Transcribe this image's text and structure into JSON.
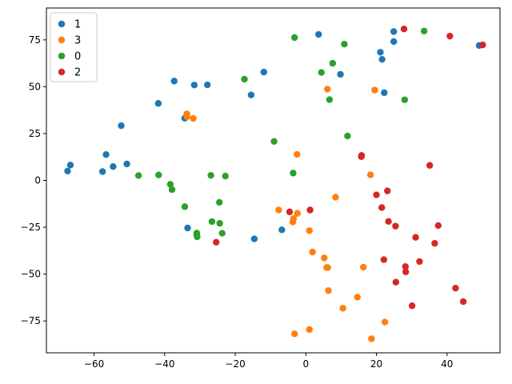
{
  "chart_data": {
    "type": "scatter",
    "title": "",
    "xlabel": "",
    "ylabel": "",
    "xlim": [
      -73.5,
      55
    ],
    "ylim": [
      -92,
      92
    ],
    "xticks": [
      -60,
      -40,
      -20,
      0,
      20,
      40
    ],
    "yticks": [
      -75,
      -50,
      -25,
      0,
      25,
      50,
      75
    ],
    "tick_labels_x": [
      "−60",
      "−40",
      "−20",
      "0",
      "20",
      "40"
    ],
    "tick_labels_y": [
      "−75",
      "−50",
      "−25",
      "0",
      "25",
      "50",
      "75"
    ],
    "grid": false,
    "legend_position": "top-left",
    "series": [
      {
        "name": "1",
        "color": "#1f77b4",
        "points": [
          [
            -67.5,
            5
          ],
          [
            -66.7,
            8.2
          ],
          [
            -57.6,
            4.7
          ],
          [
            -56.6,
            13.8
          ],
          [
            -54.6,
            7.4
          ],
          [
            -52.3,
            29.2
          ],
          [
            -50.7,
            8.8
          ],
          [
            -41.8,
            41.1
          ],
          [
            -37.3,
            53
          ],
          [
            -34.3,
            33.2
          ],
          [
            -33.5,
            -25.4
          ],
          [
            -31.6,
            50.9
          ],
          [
            -27.9,
            51
          ],
          [
            -14.6,
            -31.2
          ],
          [
            -11.9,
            57.8
          ],
          [
            -15.5,
            45.6
          ],
          [
            -6.8,
            -26.4
          ],
          [
            3.6,
            77.9
          ],
          [
            9.8,
            56.6
          ],
          [
            21.1,
            68.4
          ],
          [
            21.6,
            64.6
          ],
          [
            22.2,
            46.8
          ],
          [
            24.9,
            79.4
          ],
          [
            24.9,
            74.1
          ],
          [
            49.1,
            72
          ]
        ]
      },
      {
        "name": "3",
        "color": "#ff7f0e",
        "points": [
          [
            -33.7,
            35.5
          ],
          [
            -33.7,
            34
          ],
          [
            -31.9,
            33.1
          ],
          [
            -7.7,
            -15.8
          ],
          [
            -3.7,
            -22.2
          ],
          [
            -3.5,
            -20.4
          ],
          [
            -2.5,
            13.9
          ],
          [
            -2.4,
            -17.6
          ],
          [
            1,
            -26.8
          ],
          [
            1.9,
            -38.2
          ],
          [
            5.2,
            -41.4
          ],
          [
            5.9,
            -46.5
          ],
          [
            6.2,
            -46.5
          ],
          [
            6.1,
            48.7
          ],
          [
            6.4,
            -58.8
          ],
          [
            8.4,
            -9
          ],
          [
            10.5,
            -68.2
          ],
          [
            14.6,
            -62.3
          ],
          [
            16.3,
            -46.3
          ],
          [
            18.3,
            3
          ],
          [
            19.5,
            48.2
          ],
          [
            22.4,
            -75.6
          ],
          [
            18.6,
            -84.5
          ],
          [
            1,
            -79.6
          ],
          [
            -3.2,
            -81.9
          ]
        ]
      },
      {
        "name": "0",
        "color": "#2ca02c",
        "points": [
          [
            -47.4,
            2.6
          ],
          [
            -41.7,
            2.9
          ],
          [
            -38.4,
            -2.1
          ],
          [
            -37.9,
            -4.9
          ],
          [
            -34.3,
            -14
          ],
          [
            -30.9,
            -28.1
          ],
          [
            -30.9,
            -29.1
          ],
          [
            -30.8,
            -30.1
          ],
          [
            -26.9,
            2.7
          ],
          [
            -26.6,
            -22
          ],
          [
            -24.5,
            -11.7
          ],
          [
            -24.4,
            -22.9
          ],
          [
            -23.7,
            -28.2
          ],
          [
            -22.8,
            2.3
          ],
          [
            -17.4,
            54
          ],
          [
            -9,
            20.8
          ],
          [
            -3.6,
            3.9
          ],
          [
            -3.2,
            76.2
          ],
          [
            4.4,
            57.6
          ],
          [
            6.7,
            43.1
          ],
          [
            7.6,
            62.5
          ],
          [
            10.9,
            72.7
          ],
          [
            11.8,
            23.7
          ],
          [
            28,
            43
          ],
          [
            33.5,
            79.7
          ]
        ]
      },
      {
        "name": "2",
        "color": "#d62728",
        "points": [
          [
            -25.4,
            -33
          ],
          [
            -4.6,
            -16.8
          ],
          [
            1.2,
            -15.8
          ],
          [
            15.7,
            12.7
          ],
          [
            15.8,
            13.3
          ],
          [
            20,
            -7.7
          ],
          [
            21.5,
            -14.5
          ],
          [
            22.1,
            -42.3
          ],
          [
            23.1,
            -5.6
          ],
          [
            23.4,
            -21.9
          ],
          [
            25.4,
            -24.4
          ],
          [
            25.5,
            -54.3
          ],
          [
            28.2,
            -46
          ],
          [
            28.3,
            -48.8
          ],
          [
            27.8,
            80.8
          ],
          [
            30.1,
            -66.9
          ],
          [
            31.1,
            -30.4
          ],
          [
            32.2,
            -43.3
          ],
          [
            35.1,
            8
          ],
          [
            36.5,
            -33.6
          ],
          [
            37.5,
            -24.1
          ],
          [
            40.8,
            77
          ],
          [
            42.4,
            -57.5
          ],
          [
            44.6,
            -64.7
          ],
          [
            50.1,
            72.3
          ]
        ]
      }
    ]
  }
}
